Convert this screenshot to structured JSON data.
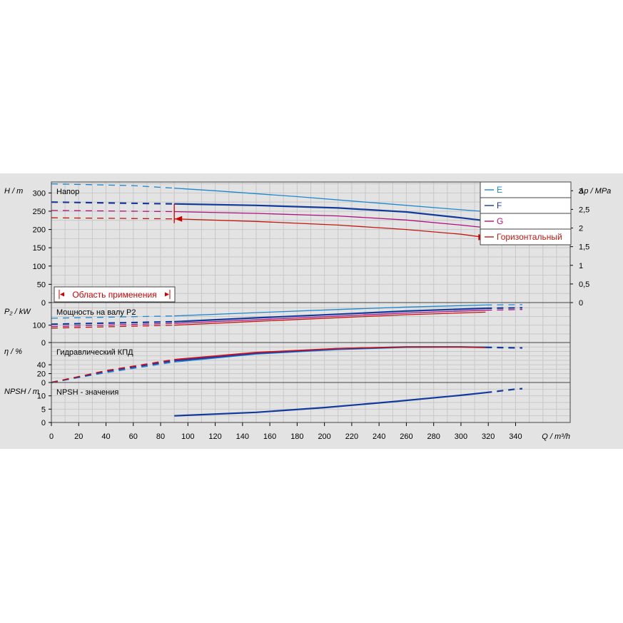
{
  "chart_data": {
    "type": "line",
    "x_axis": {
      "label": "Q / m³/h",
      "range": [
        0,
        380
      ],
      "ticks": [
        0,
        20,
        40,
        60,
        80,
        100,
        120,
        140,
        160,
        180,
        200,
        220,
        240,
        260,
        280,
        300,
        320,
        340
      ]
    },
    "legend": {
      "placement": "top-right",
      "entries": [
        {
          "name": "E",
          "color": "#1e88d0"
        },
        {
          "name": "F",
          "color": "#123a9a"
        },
        {
          "name": "G",
          "color": "#b0107f"
        },
        {
          "name": "Горизонтальный",
          "color": "#c01810"
        }
      ]
    },
    "operating_range_label": "Область применения",
    "operating_range_x": [
      90,
      318
    ],
    "panels": [
      {
        "id": "head",
        "title": "Напор",
        "ylabel": "H / m",
        "ylim": [
          0,
          330
        ],
        "yticks": [
          0,
          50,
          100,
          150,
          200,
          250,
          300
        ],
        "secondary_axis": {
          "label": "Δp / MPa",
          "ticks": [
            "0",
            "0,5",
            "1",
            "1,5",
            "2",
            "2,5",
            "3"
          ],
          "values": [
            0,
            0.5,
            1,
            1.5,
            2,
            2.5,
            3
          ]
        },
        "series": [
          {
            "name": "E",
            "color": "#1e88d0",
            "x": [
              0,
              60,
              120,
              180,
              240,
              300,
              318
            ],
            "y": [
              325,
              320,
              306,
              290,
              272,
              254,
              249
            ]
          },
          {
            "name": "F",
            "color": "#123a9a",
            "x": [
              0,
              90,
              150,
              210,
              260,
              300,
              318
            ],
            "y": [
              275,
              270,
              266,
              259,
              248,
              232,
              224
            ]
          },
          {
            "name": "G",
            "color": "#b0107f",
            "x": [
              0,
              90,
              150,
              210,
              260,
              300,
              318
            ],
            "y": [
              252,
              249,
              244,
              237,
              226,
              212,
              205
            ]
          },
          {
            "name": "Горизонтальный",
            "color": "#c01810",
            "x": [
              0,
              90,
              150,
              210,
              260,
              300,
              318
            ],
            "y": [
              232,
              229,
              222,
              212,
              200,
              187,
              178
            ]
          }
        ]
      },
      {
        "id": "power",
        "title": "Мощность на валу P2",
        "ylabel": "P₂ / kW",
        "ylim": [
          0,
          230
        ],
        "yticks": [
          0,
          100
        ],
        "series": [
          {
            "name": "E",
            "color": "#1e88d0",
            "x": [
              0,
              90,
              150,
              210,
              260,
              318,
              345
            ],
            "y": [
              140,
              153,
              172,
              190,
              204,
              216,
              218
            ]
          },
          {
            "name": "F",
            "color": "#123a9a",
            "x": [
              0,
              90,
              150,
              210,
              260,
              318,
              345
            ],
            "y": [
              105,
              120,
              142,
              163,
              181,
              197,
              200
            ]
          },
          {
            "name": "G",
            "color": "#b0107f",
            "x": [
              0,
              90,
              150,
              210,
              260,
              318,
              345
            ],
            "y": [
              92,
              110,
              131,
              152,
              170,
              186,
              190
            ]
          },
          {
            "name": "Горизонтальный",
            "color": "#c01810",
            "x": [
              0,
              90,
              150,
              210,
              260,
              318
            ],
            "y": [
              83,
              100,
              122,
              143,
              160,
              175
            ]
          }
        ]
      },
      {
        "id": "efficiency",
        "title": "Гидравлический КПД",
        "ylabel": "η / %",
        "ylim": [
          0,
          90
        ],
        "yticks": [
          0,
          20,
          40
        ],
        "series": [
          {
            "name": "E",
            "color": "#1e88d0",
            "x": [
              0,
              40,
              90,
              150,
              210,
              260,
              300,
              318,
              345
            ],
            "y": [
              0,
              22,
              46,
              64,
              74,
              79,
              80,
              80,
              78
            ]
          },
          {
            "name": "F",
            "color": "#123a9a",
            "x": [
              0,
              40,
              90,
              150,
              210,
              260,
              300,
              318,
              345
            ],
            "y": [
              0,
              25,
              49,
              66,
              76,
              80,
              80,
              79,
              78
            ]
          },
          {
            "name": "G",
            "color": "#b0107f",
            "x": [
              0,
              40,
              90,
              150,
              210,
              260,
              300,
              318
            ],
            "y": [
              0,
              26,
              51,
              67,
              76,
              80,
              80,
              79
            ]
          },
          {
            "name": "Горизонтальный",
            "color": "#c01810",
            "x": [
              0,
              40,
              90,
              150,
              210,
              260,
              300,
              318
            ],
            "y": [
              0,
              27,
              52,
              68,
              77,
              80,
              80,
              79
            ]
          }
        ]
      },
      {
        "id": "npsh",
        "title": "NPSH - значения",
        "ylabel": "NPSH / m",
        "ylim": [
          0,
          15
        ],
        "yticks": [
          0,
          5,
          10
        ],
        "series": [
          {
            "name": "NPSH",
            "color": "#123a9a",
            "x": [
              90,
              150,
              200,
              250,
              300,
              318,
              340,
              345
            ],
            "y": [
              2.5,
              3.8,
              5.6,
              7.8,
              10.2,
              11.2,
              12.5,
              12.7
            ]
          }
        ]
      }
    ]
  }
}
